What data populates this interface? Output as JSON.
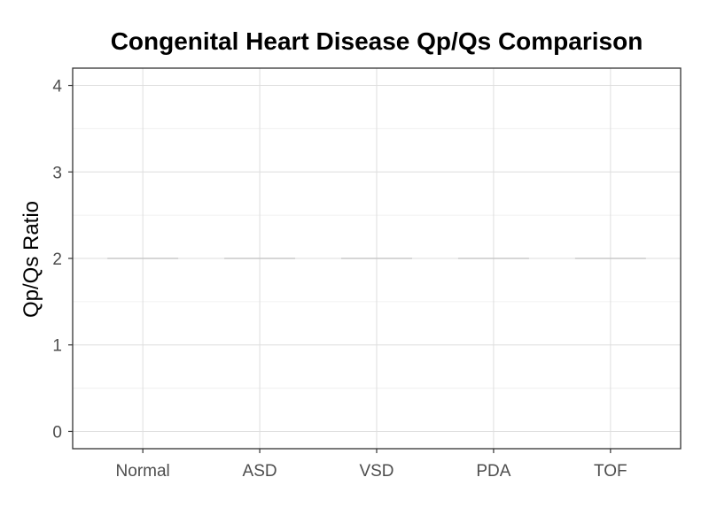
{
  "chart_data": {
    "type": "bar",
    "title": "Congenital Heart Disease Qp/Qs Comparison",
    "xlabel": "",
    "ylabel": "Qp/Qs Ratio",
    "categories": [
      "Normal",
      "ASD",
      "VSD",
      "PDA",
      "TOF"
    ],
    "values": [
      2,
      2,
      2,
      2,
      2
    ],
    "ylim": [
      -0.2,
      4.2
    ],
    "yticks": [
      0,
      1,
      2,
      3,
      4
    ],
    "grid": true,
    "legend": "none",
    "colors": {
      "marker": "#c8c8c8",
      "grid_major": "#dedede",
      "grid_minor": "#f0f0f0",
      "panel_border": "#333333",
      "tick_text": "#4d4d4d"
    }
  }
}
